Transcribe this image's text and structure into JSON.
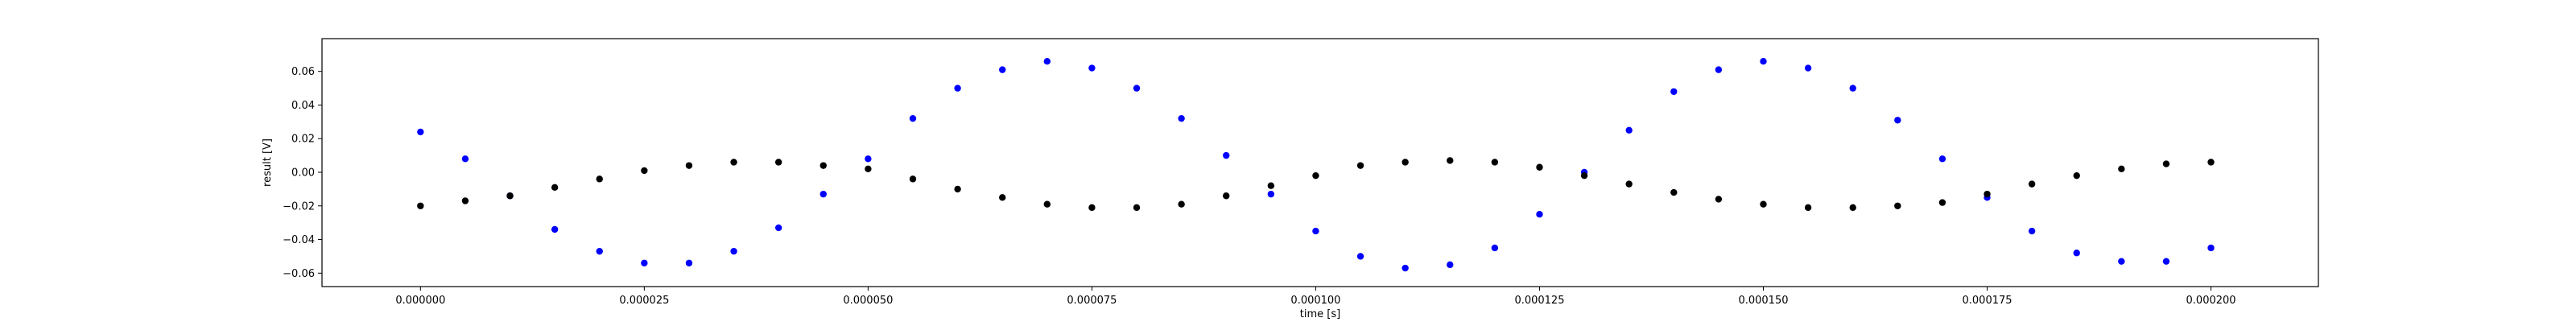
{
  "chart_data": {
    "type": "scatter",
    "title": "",
    "xlabel": "time [s]",
    "ylabel": "result [V]",
    "xlim": [
      -1.1e-05,
      0.000212
    ],
    "ylim": [
      -0.068,
      0.0795
    ],
    "grid": false,
    "legend": "none",
    "x_ticks": [
      {
        "value": 0.0,
        "label": "0.000000"
      },
      {
        "value": 2.5e-05,
        "label": "0.000025"
      },
      {
        "value": 5e-05,
        "label": "0.000050"
      },
      {
        "value": 7.5e-05,
        "label": "0.000075"
      },
      {
        "value": 0.0001,
        "label": "0.000100"
      },
      {
        "value": 0.000125,
        "label": "0.000125"
      },
      {
        "value": 0.00015,
        "label": "0.000150"
      },
      {
        "value": 0.000175,
        "label": "0.000175"
      },
      {
        "value": 0.0002,
        "label": "0.000200"
      }
    ],
    "y_ticks": [
      {
        "value": -0.06,
        "label": "−0.06"
      },
      {
        "value": -0.04,
        "label": "−0.04"
      },
      {
        "value": -0.02,
        "label": "−0.02"
      },
      {
        "value": 0.0,
        "label": "0.00"
      },
      {
        "value": 0.02,
        "label": "0.02"
      },
      {
        "value": 0.04,
        "label": "0.04"
      },
      {
        "value": 0.06,
        "label": "0.06"
      }
    ],
    "series": [
      {
        "color": "#0000ff",
        "marker": "dot",
        "x": [
          0.0,
          5e-06,
          1e-05,
          1.5e-05,
          2e-05,
          2.5e-05,
          3e-05,
          3.5e-05,
          4e-05,
          4.5e-05,
          5e-05,
          5.5e-05,
          6e-05,
          6.5e-05,
          7e-05,
          7.5e-05,
          8e-05,
          8.5e-05,
          9e-05,
          9.5e-05,
          0.0001,
          0.000105,
          0.00011,
          0.000115,
          0.00012,
          0.000125,
          0.00013,
          0.000135,
          0.00014,
          0.000145,
          0.00015,
          0.000155,
          0.00016,
          0.000165,
          0.00017,
          0.000175,
          0.00018,
          0.000185,
          0.00019,
          0.000195,
          0.0002
        ],
        "y": [
          0.024,
          0.008,
          -0.014,
          -0.034,
          -0.047,
          -0.054,
          -0.054,
          -0.047,
          -0.033,
          -0.013,
          0.008,
          0.032,
          0.05,
          0.061,
          0.066,
          0.062,
          0.05,
          0.032,
          0.01,
          -0.013,
          -0.035,
          -0.05,
          -0.057,
          -0.055,
          -0.045,
          -0.025,
          0.0,
          0.025,
          0.048,
          0.061,
          0.066,
          0.062,
          0.05,
          0.031,
          0.008,
          -0.015,
          -0.035,
          -0.048,
          -0.053,
          -0.053,
          -0.045
        ]
      },
      {
        "color": "#000000",
        "marker": "dot",
        "x": [
          0.0,
          5e-06,
          1e-05,
          1.5e-05,
          2e-05,
          2.5e-05,
          3e-05,
          3.5e-05,
          4e-05,
          4.5e-05,
          5e-05,
          5.5e-05,
          6e-05,
          6.5e-05,
          7e-05,
          7.5e-05,
          8e-05,
          8.5e-05,
          9e-05,
          9.5e-05,
          0.0001,
          0.000105,
          0.00011,
          0.000115,
          0.00012,
          0.000125,
          0.00013,
          0.000135,
          0.00014,
          0.000145,
          0.00015,
          0.000155,
          0.00016,
          0.000165,
          0.00017,
          0.000175,
          0.00018,
          0.000185,
          0.00019,
          0.000195,
          0.0002
        ],
        "y": [
          -0.02,
          -0.017,
          -0.014,
          -0.009,
          -0.004,
          0.001,
          0.004,
          0.006,
          0.006,
          0.004,
          0.002,
          -0.004,
          -0.01,
          -0.015,
          -0.019,
          -0.021,
          -0.021,
          -0.019,
          -0.014,
          -0.008,
          -0.002,
          0.004,
          0.006,
          0.007,
          0.006,
          0.003,
          -0.002,
          -0.007,
          -0.012,
          -0.016,
          -0.019,
          -0.021,
          -0.021,
          -0.02,
          -0.018,
          -0.013,
          -0.007,
          -0.002,
          0.002,
          0.005,
          0.006
        ]
      }
    ]
  }
}
